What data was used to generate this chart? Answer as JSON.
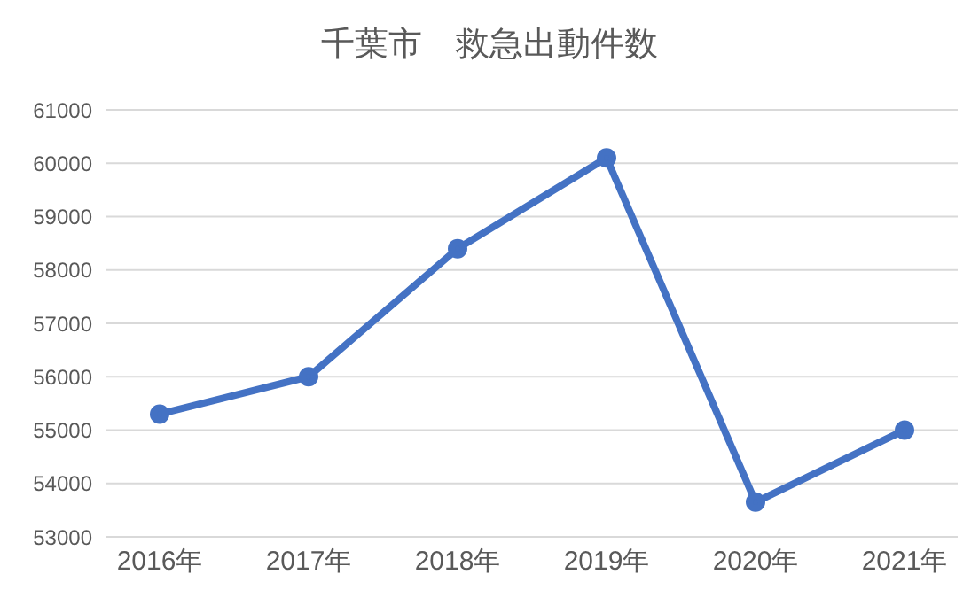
{
  "chart_data": {
    "type": "line",
    "title": "千葉市　救急出動件数",
    "categories": [
      "2016年",
      "2017年",
      "2018年",
      "2019年",
      "2020年",
      "2021年"
    ],
    "series": [
      {
        "color": "#4472c4",
        "values": [
          55300,
          56000,
          58400,
          60100,
          53650,
          55000
        ]
      }
    ],
    "ylim": [
      53000,
      61000
    ],
    "yticks": [
      53000,
      54000,
      55000,
      56000,
      57000,
      58000,
      59000,
      60000,
      61000
    ],
    "grid": "y",
    "legend": false,
    "marker": "circle",
    "line_style": "solid"
  }
}
